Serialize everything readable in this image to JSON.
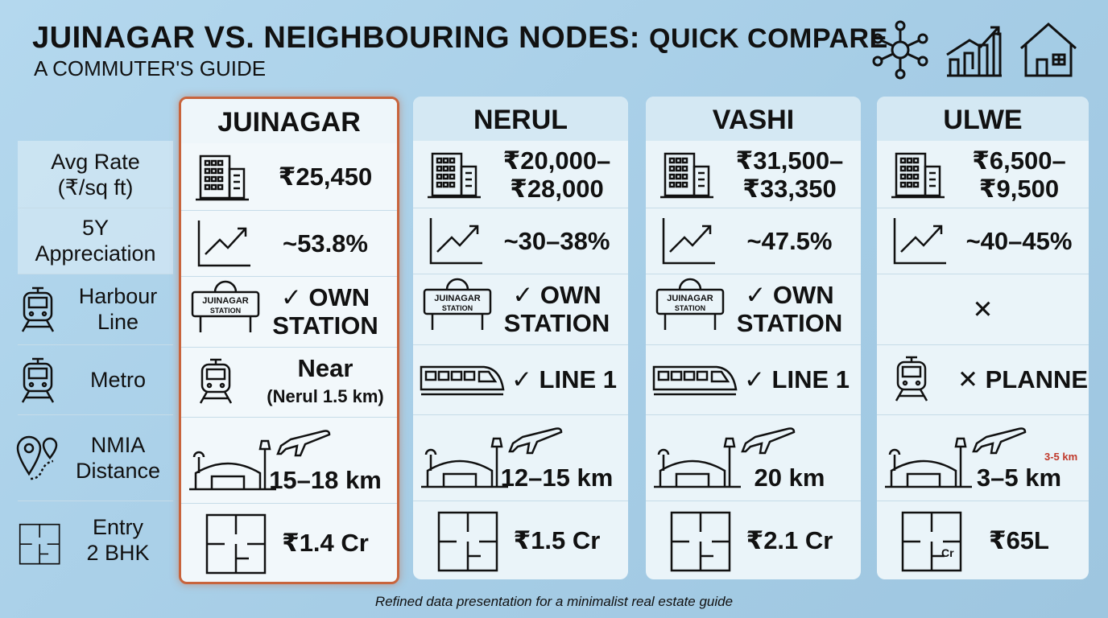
{
  "header": {
    "title": "JUINAGAR VS. NEIGHBOURING NODES:",
    "title_emphasis": "QUICK COMPARE",
    "subtitle": "A COMMUTER'S GUIDE"
  },
  "table": {
    "row_labels": [
      [
        "Avg Rate",
        "(₹/sq ft)"
      ],
      [
        "5Y",
        "Appreciation"
      ],
      [
        "Harbour",
        "Line"
      ],
      [
        "Metro"
      ],
      [
        "NMIA",
        "Distance"
      ],
      [
        "Entry",
        "2 BHK"
      ]
    ],
    "station_sign": [
      "JUINAGAR",
      "STATION"
    ],
    "columns": [
      {
        "name": "JUINAGAR",
        "cells": [
          [
            "₹25,450"
          ],
          [
            "~53.8%"
          ],
          [
            "✓ OWN",
            "STATION"
          ],
          [
            "Near",
            "(Nerul 1.5 km)"
          ],
          [
            "15–18 km"
          ],
          [
            "₹1.4 Cr"
          ]
        ]
      },
      {
        "name": "NERUL",
        "cells": [
          [
            "₹20,000–",
            "₹28,000"
          ],
          [
            "~30–38%"
          ],
          [
            "✓ OWN",
            "STATION"
          ],
          [
            "✓ LINE 1"
          ],
          [
            "12–15 km"
          ],
          [
            "₹1.5 Cr"
          ]
        ]
      },
      {
        "name": "VASHI",
        "cells": [
          [
            "₹31,500–",
            "₹33,350"
          ],
          [
            "~47.5%"
          ],
          [
            "✓ OWN",
            "STATION"
          ],
          [
            "✓ LINE 1"
          ],
          [
            "20 km"
          ],
          [
            "₹2.1 Cr"
          ]
        ]
      },
      {
        "name": "ULWE",
        "cells": [
          [
            "₹6,500–",
            "₹9,500"
          ],
          [
            "~40–45%"
          ],
          [
            "✕"
          ],
          [
            "✕ PLANNED"
          ],
          [
            "3–5 km"
          ],
          [
            "₹65L"
          ]
        ]
      }
    ],
    "ulwe_nmia_badge": "3-5 km",
    "ulwe_plan_badge": "Cr"
  },
  "footer": "Refined data presentation for a minimalist real estate guide"
}
